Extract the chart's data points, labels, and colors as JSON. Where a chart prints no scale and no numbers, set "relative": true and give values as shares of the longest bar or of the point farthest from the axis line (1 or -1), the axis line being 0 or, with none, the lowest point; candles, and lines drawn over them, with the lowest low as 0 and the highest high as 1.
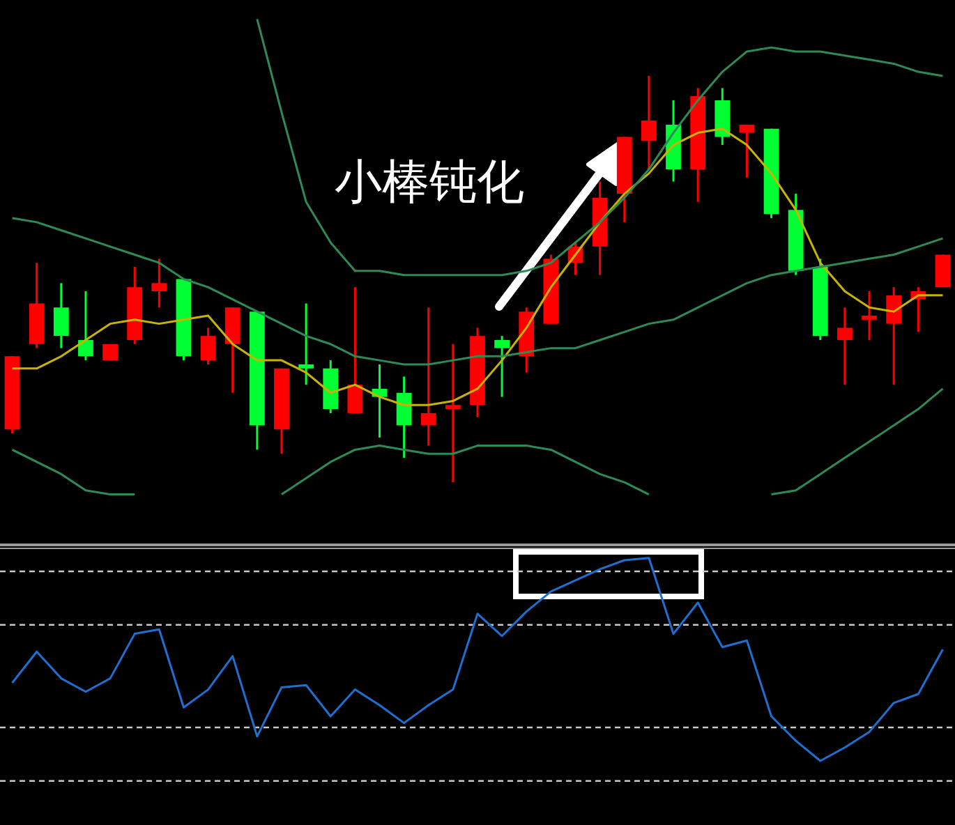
{
  "chart_data": [
    {
      "type": "candlestick",
      "relative": true,
      "categories": [
        null,
        null,
        null,
        null,
        null,
        null,
        null,
        null,
        null,
        null,
        null,
        null,
        null,
        null,
        null,
        null,
        null,
        null,
        null,
        null,
        null,
        null,
        null,
        null,
        null,
        null,
        null,
        null,
        null,
        null,
        null,
        null,
        null,
        null,
        null,
        null,
        null,
        null,
        null
      ],
      "ohlc": [
        [
          0.13,
          0.31,
          0.12,
          0.31
        ],
        [
          0.34,
          0.54,
          0.33,
          0.44
        ],
        [
          0.43,
          0.49,
          0.33,
          0.36
        ],
        [
          0.35,
          0.47,
          0.3,
          0.31
        ],
        [
          0.3,
          0.34,
          0.3,
          0.34
        ],
        [
          0.35,
          0.53,
          0.34,
          0.48
        ],
        [
          0.47,
          0.55,
          0.43,
          0.49
        ],
        [
          0.5,
          0.5,
          0.3,
          0.31
        ],
        [
          0.3,
          0.38,
          0.29,
          0.36
        ],
        [
          0.34,
          0.43,
          0.22,
          0.43
        ],
        [
          0.42,
          0.42,
          0.08,
          0.14
        ],
        [
          0.13,
          0.28,
          0.07,
          0.28
        ],
        [
          0.29,
          0.44,
          0.24,
          0.28
        ],
        [
          0.28,
          0.3,
          0.17,
          0.18
        ],
        [
          0.17,
          0.48,
          0.17,
          0.24
        ],
        [
          0.23,
          0.29,
          0.11,
          0.21
        ],
        [
          0.22,
          0.26,
          0.06,
          0.14
        ],
        [
          0.14,
          0.43,
          0.09,
          0.17
        ],
        [
          0.18,
          0.34,
          0,
          0.19
        ],
        [
          0.19,
          0.38,
          0.16,
          0.36
        ],
        [
          0.35,
          0.36,
          0.21,
          0.33
        ],
        [
          0.31,
          0.43,
          0.27,
          0.42
        ],
        [
          0.39,
          0.56,
          0.39,
          0.55
        ],
        [
          0.54,
          0.59,
          0.51,
          0.58
        ],
        [
          0.58,
          0.74,
          0.51,
          0.7
        ],
        [
          0.71,
          0.85,
          0.64,
          0.85
        ],
        [
          0.84,
          1,
          0.77,
          0.89
        ],
        [
          0.88,
          0.94,
          0.74,
          0.77
        ],
        [
          0.77,
          0.97,
          0.69,
          0.95
        ],
        [
          0.94,
          0.97,
          0.83,
          0.85
        ],
        [
          0.86,
          0.88,
          0.75,
          0.88
        ],
        [
          0.87,
          0.87,
          0.65,
          0.66
        ],
        [
          0.67,
          0.71,
          0.51,
          0.52
        ],
        [
          0.53,
          0.55,
          0.35,
          0.36
        ],
        [
          0.35,
          0.43,
          0.24,
          0.38
        ],
        [
          0.4,
          0.47,
          0.35,
          0.41
        ],
        [
          0.39,
          0.48,
          0.24,
          0.46
        ],
        [
          0.45,
          0.48,
          0.37,
          0.47
        ],
        [
          0.48,
          0.56,
          0.48,
          0.56
        ]
      ],
      "colors": [
        "#ff0000",
        "#ff0000",
        "#00ff33",
        "#00ff33",
        "#ff0000",
        "#ff0000",
        "#ff0000",
        "#00ff33",
        "#ff0000",
        "#ff0000",
        "#00ff33",
        "#ff0000",
        "#00ff33",
        "#00ff33",
        "#ff0000",
        "#00ff33",
        "#00ff33",
        "#ff0000",
        "#ff0000",
        "#ff0000",
        "#00ff33",
        "#ff0000",
        "#ff0000",
        "#ff0000",
        "#ff0000",
        "#ff0000",
        "#ff0000",
        "#00ff33",
        "#ff0000",
        "#00ff33",
        "#ff0000",
        "#00ff33",
        "#00ff33",
        "#00ff33",
        "#ff0000",
        "#ff0000",
        "#ff0000",
        "#ff0000",
        "#ff0000"
      ],
      "series": [
        {
          "type": "line",
          "color": "#2e8b57",
          "values": [
            null,
            null,
            null,
            null,
            null,
            null,
            null,
            null,
            null,
            null,
            1.14,
            0.91,
            0.69,
            0.59,
            0.52,
            0.52,
            0.51,
            0.51,
            0.51,
            0.51,
            0.51,
            0.52,
            0.54,
            0.59,
            0.64,
            0.7,
            0.77,
            0.86,
            0.94,
            1.01,
            1.06,
            1.07,
            1.06,
            1.06,
            1.05,
            1.04,
            1.03,
            1.01,
            1.0
          ]
        },
        {
          "type": "line",
          "color": "#2e8b57",
          "values": [
            0.65,
            0.64,
            0.62,
            0.6,
            0.58,
            0.56,
            0.54,
            0.5,
            0.48,
            0.45,
            0.42,
            0.39,
            0.36,
            0.34,
            0.31,
            0.3,
            0.29,
            0.29,
            0.3,
            0.31,
            0.31,
            0.32,
            0.33,
            0.33,
            0.35,
            0.37,
            0.39,
            0.4,
            0.43,
            0.46,
            0.49,
            0.51,
            0.52,
            0.53,
            0.54,
            0.55,
            0.56,
            0.58,
            0.6
          ]
        },
        {
          "type": "line",
          "color": "#2e8b57",
          "values": [
            0.08,
            0.05,
            0.02,
            -0.02,
            -0.03,
            -0.03,
            null,
            null,
            null,
            null,
            null,
            -0.03,
            0.01,
            0.05,
            0.08,
            0.09,
            0.08,
            0.07,
            0.07,
            0.09,
            0.09,
            0.09,
            0.08,
            0.05,
            0.02,
            0,
            -0.03,
            null,
            null,
            null,
            null,
            -0.03,
            -0.02,
            0.02,
            0.06,
            0.1,
            0.14,
            0.18,
            0.23
          ]
        },
        {
          "type": "line",
          "color": "#c8b400",
          "values": [
            0.28,
            0.28,
            0.31,
            0.35,
            0.39,
            0.4,
            0.39,
            0.4,
            0.41,
            0.34,
            0.3,
            0.3,
            0.27,
            0.22,
            0.24,
            0.21,
            0.19,
            0.19,
            0.2,
            0.23,
            0.3,
            0.38,
            0.48,
            0.56,
            0.64,
            0.71,
            0.76,
            0.83,
            0.86,
            0.87,
            0.83,
            0.76,
            0.67,
            0.54,
            0.47,
            0.43,
            0.42,
            0.46,
            0.46
          ]
        }
      ],
      "annotations": [
        "小棒钝化"
      ]
    },
    {
      "type": "line",
      "relative": true,
      "line_style": "solid",
      "marker": "none",
      "categories": [
        null,
        null,
        null,
        null,
        null,
        null,
        null,
        null,
        null,
        null,
        null,
        null,
        null,
        null,
        null,
        null,
        null,
        null,
        null,
        null,
        null,
        null,
        null,
        null,
        null,
        null,
        null,
        null,
        null,
        null,
        null,
        null,
        null,
        null,
        null,
        null,
        null,
        null,
        null
      ],
      "series": [
        {
          "color": "#1e6fd0",
          "values": [
            0.44,
            0.58,
            0.46,
            0.4,
            0.46,
            0.66,
            0.68,
            0.33,
            0.41,
            0.56,
            0.2,
            0.42,
            0.43,
            0.29,
            0.41,
            0.34,
            0.26,
            0.34,
            0.41,
            0.75,
            0.65,
            0.76,
            0.85,
            0.9,
            0.95,
            0.99,
            1,
            0.66,
            0.8,
            0.6,
            0.63,
            0.29,
            0.18,
            0.09,
            0.15,
            0.22,
            0.35,
            0.39,
            0.59
          ]
        }
      ],
      "ref_lines": [
        {
          "axis": "y",
          "value": 0.94,
          "color": "#c8c8c8",
          "line_style": "dashed"
        },
        {
          "axis": "y",
          "value": 0.7,
          "color": "#c8c8c8",
          "line_style": "dashed"
        },
        {
          "axis": "y",
          "value": 0.24,
          "color": "#c8c8c8",
          "line_style": "dashed"
        },
        {
          "axis": "y",
          "value": 0,
          "color": "#c8c8c8",
          "line_style": "dashed"
        }
      ]
    }
  ]
}
